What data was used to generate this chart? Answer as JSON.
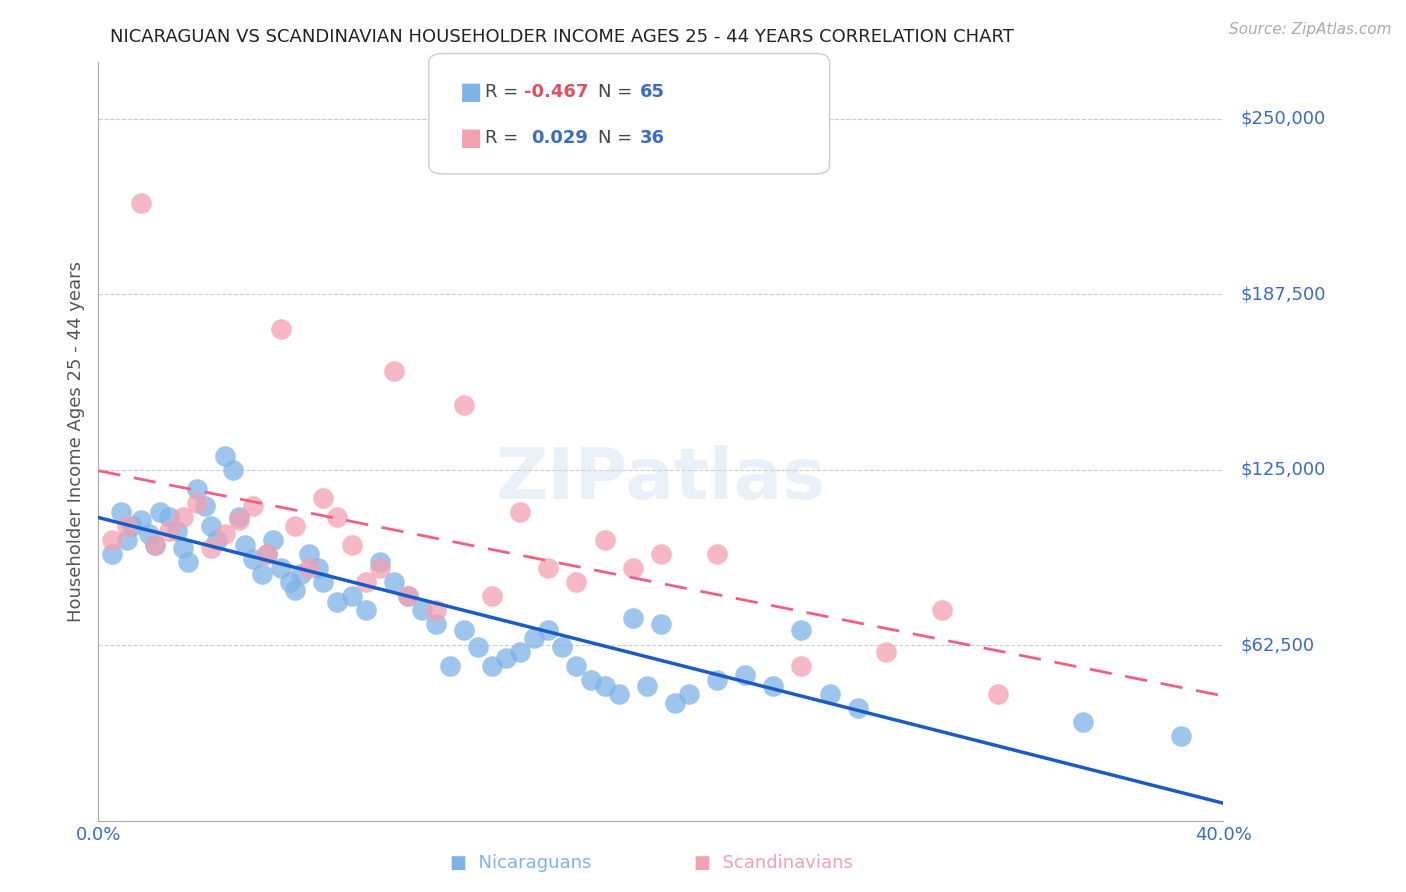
{
  "title": "NICARAGUAN VS SCANDINAVIAN HOUSEHOLDER INCOME AGES 25 - 44 YEARS CORRELATION CHART",
  "source": "Source: ZipAtlas.com",
  "ylabel": "Householder Income Ages 25 - 44 years",
  "xmin": 0.0,
  "xmax": 40.0,
  "ymin": 0,
  "ymax": 270000,
  "yticks": [
    62500,
    125000,
    187500,
    250000
  ],
  "ytick_labels": [
    "$62,500",
    "$125,000",
    "$187,500",
    "$250,000"
  ],
  "watermark": "ZIPatlas",
  "nicaraguan_color": "#7eb3e8",
  "scandinavian_color": "#f4a0b0",
  "blue_line_color": "#1a5bc4",
  "pink_line_color": "#f06080",
  "axis_label_color": "#3a6bc8",
  "title_color": "#222222",
  "grid_color": "#cccccc",
  "background_color": "#ffffff",
  "nicaraguans_x": [
    0.5,
    0.8,
    1.0,
    1.2,
    1.5,
    1.8,
    2.0,
    2.2,
    2.5,
    2.8,
    3.0,
    3.2,
    3.5,
    3.8,
    4.0,
    4.2,
    4.5,
    4.8,
    5.0,
    5.2,
    5.5,
    5.8,
    6.0,
    6.2,
    6.5,
    6.8,
    7.0,
    7.2,
    7.5,
    7.8,
    8.0,
    8.5,
    9.0,
    9.5,
    10.0,
    10.5,
    11.0,
    11.5,
    12.0,
    12.5,
    13.0,
    13.5,
    14.0,
    14.5,
    15.0,
    15.5,
    16.0,
    16.5,
    17.0,
    17.5,
    18.0,
    18.5,
    19.0,
    19.5,
    20.0,
    20.5,
    21.0,
    22.0,
    23.0,
    24.0,
    25.0,
    26.0,
    27.0,
    35.0,
    38.5
  ],
  "nicaraguans_y": [
    95000,
    110000,
    100000,
    105000,
    107000,
    102000,
    98000,
    110000,
    108000,
    103000,
    97000,
    92000,
    118000,
    112000,
    105000,
    100000,
    130000,
    125000,
    108000,
    98000,
    93000,
    88000,
    95000,
    100000,
    90000,
    85000,
    82000,
    88000,
    95000,
    90000,
    85000,
    78000,
    80000,
    75000,
    92000,
    85000,
    80000,
    75000,
    70000,
    55000,
    68000,
    62000,
    55000,
    58000,
    60000,
    65000,
    68000,
    62000,
    55000,
    50000,
    48000,
    45000,
    72000,
    48000,
    70000,
    42000,
    45000,
    50000,
    52000,
    48000,
    68000,
    45000,
    40000,
    35000,
    30000
  ],
  "scandinavians_x": [
    0.5,
    1.0,
    1.5,
    2.0,
    2.5,
    3.0,
    3.5,
    4.0,
    4.5,
    5.0,
    5.5,
    6.0,
    6.5,
    7.0,
    7.5,
    8.0,
    8.5,
    9.0,
    9.5,
    10.0,
    10.5,
    11.0,
    12.0,
    13.0,
    14.0,
    15.0,
    16.0,
    17.0,
    18.0,
    19.0,
    20.0,
    22.0,
    25.0,
    28.0,
    30.0,
    32.0
  ],
  "scandinavians_y": [
    100000,
    105000,
    220000,
    98000,
    103000,
    108000,
    113000,
    97000,
    102000,
    107000,
    112000,
    95000,
    175000,
    105000,
    90000,
    115000,
    108000,
    98000,
    85000,
    90000,
    160000,
    80000,
    75000,
    148000,
    80000,
    110000,
    90000,
    85000,
    100000,
    90000,
    95000,
    95000,
    55000,
    60000,
    75000,
    45000
  ]
}
